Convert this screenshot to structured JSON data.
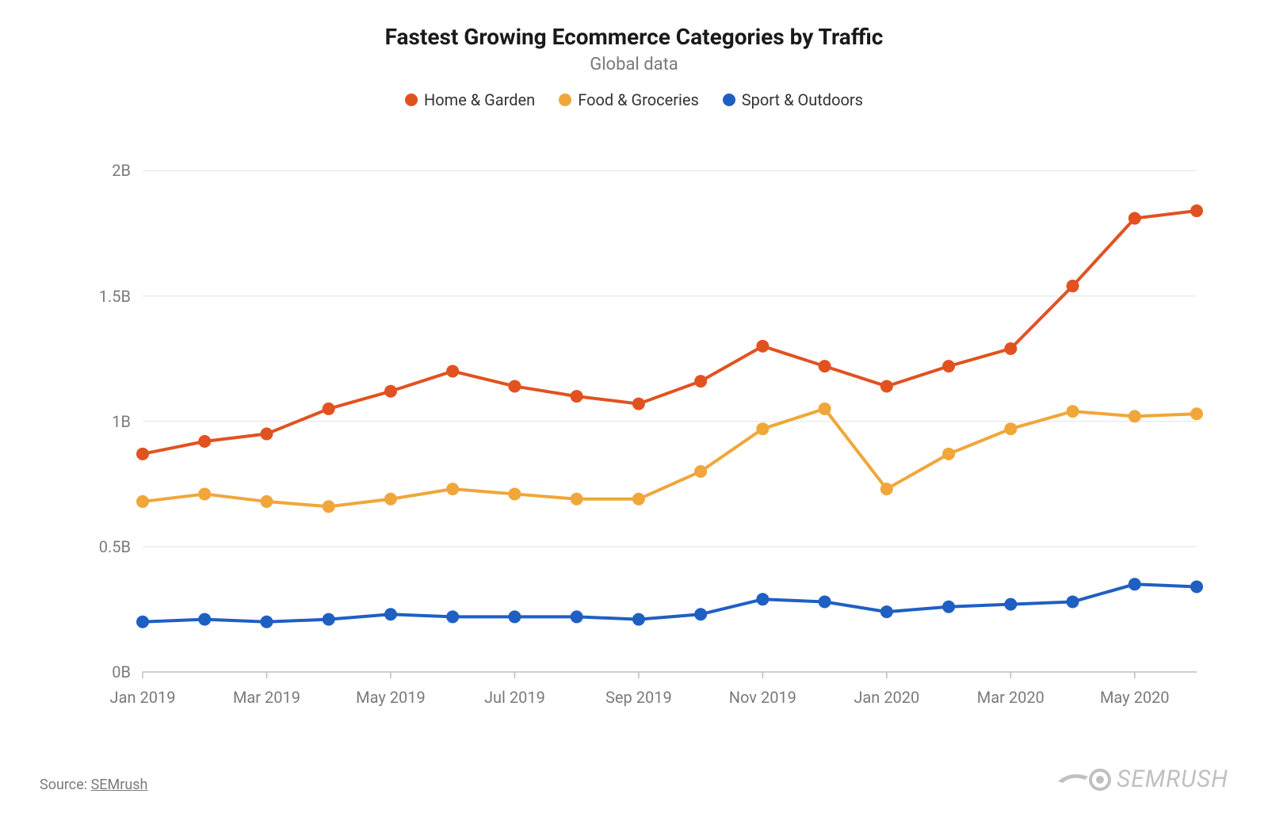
{
  "title": "Fastest Growing Ecommerce Categories by Traffic",
  "subtitle": "Global data",
  "source_prefix": "Source: ",
  "source_name": "SEMrush",
  "brand_text": "SEMRUSH",
  "chart": {
    "type": "line",
    "background_color": "#ffffff",
    "grid_color": "#e4e4e4",
    "axis_line_color": "#bdbdbd",
    "text_color": "#7a7a7a",
    "title_fontsize": 28,
    "subtitle_fontsize": 22,
    "label_fontsize": 20,
    "line_width": 4,
    "marker_radius": 8,
    "y": {
      "min": 0,
      "max": 2.15,
      "ticks": [
        0,
        0.5,
        1,
        1.5,
        2
      ],
      "tick_labels": [
        "0B",
        "0.5B",
        "1B",
        "1.5B",
        "2B"
      ]
    },
    "x": {
      "count": 18,
      "tick_indices": [
        0,
        2,
        4,
        6,
        8,
        10,
        12,
        14,
        16
      ],
      "tick_labels": [
        "Jan 2019",
        "Mar 2019",
        "May 2019",
        "Jul 2019",
        "Sep 2019",
        "Nov 2019",
        "Jan 2020",
        "Mar 2020",
        "May 2020"
      ]
    },
    "series": [
      {
        "name": "Home & Garden",
        "color": "#e15220",
        "values": [
          0.87,
          0.92,
          0.95,
          1.05,
          1.12,
          1.2,
          1.14,
          1.1,
          1.07,
          1.16,
          1.3,
          1.22,
          1.14,
          1.22,
          1.29,
          1.54,
          1.81,
          1.84
        ]
      },
      {
        "name": "Food & Groceries",
        "color": "#f0a63a",
        "values": [
          0.68,
          0.71,
          0.68,
          0.66,
          0.69,
          0.73,
          0.71,
          0.69,
          0.69,
          0.8,
          0.97,
          1.05,
          0.73,
          0.87,
          0.97,
          1.04,
          1.02,
          1.03
        ]
      },
      {
        "name": "Sport & Outdoors",
        "color": "#1f5fc2",
        "values": [
          0.2,
          0.21,
          0.2,
          0.21,
          0.23,
          0.22,
          0.22,
          0.22,
          0.21,
          0.23,
          0.29,
          0.28,
          0.24,
          0.26,
          0.27,
          0.28,
          0.35,
          0.34
        ]
      }
    ]
  }
}
